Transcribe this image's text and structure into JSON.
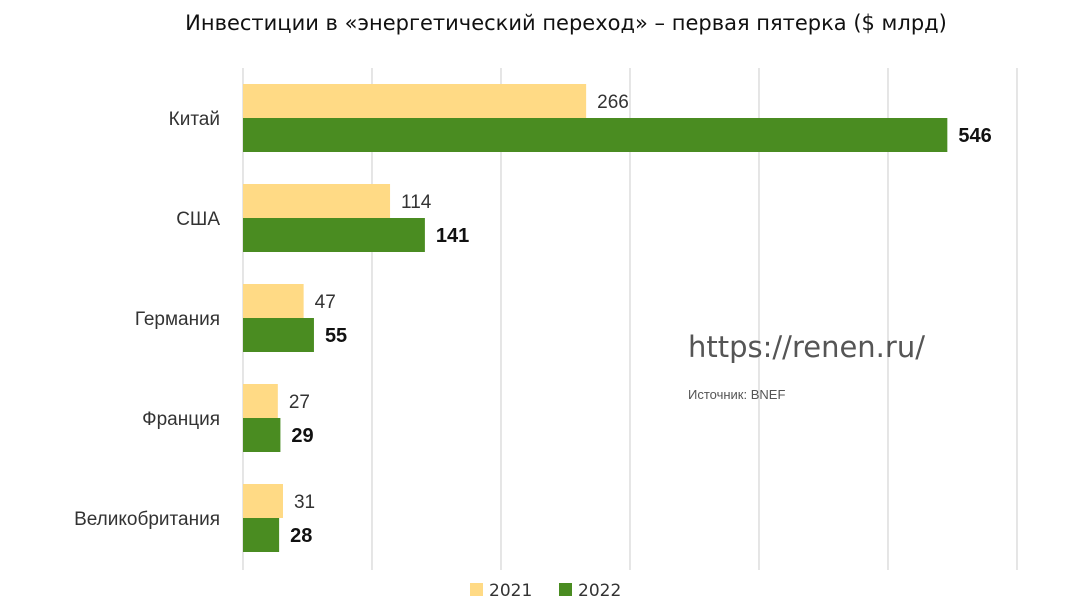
{
  "chart_data": {
    "type": "bar",
    "orientation": "horizontal",
    "title": "Инвестиции в «энергетический переход» – первая пятерка ($ млрд)",
    "categories": [
      "Китай",
      "США",
      "Германия",
      "Франция",
      "Великобритания"
    ],
    "series": [
      {
        "name": "2021",
        "color": "#FFDA85",
        "values": [
          266,
          114,
          47,
          27,
          31
        ]
      },
      {
        "name": "2022",
        "color": "#4A8C21",
        "values": [
          546,
          141,
          55,
          29,
          28
        ]
      }
    ],
    "xlim": [
      0,
      600
    ],
    "grid": true,
    "legend": "bottom-center"
  },
  "watermark": "https://renen.ru/",
  "source": "Источник: BNEF"
}
